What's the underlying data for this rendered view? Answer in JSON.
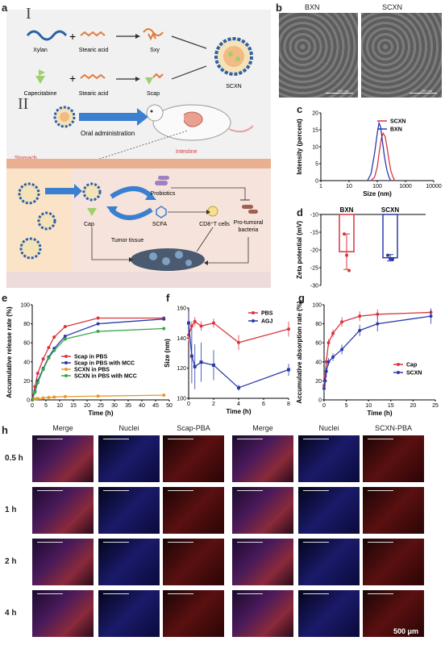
{
  "panels": {
    "a": "a",
    "b": "b",
    "c": "c",
    "d": "d",
    "e": "e",
    "f": "f",
    "g": "g",
    "h": "h"
  },
  "schematic": {
    "section1": "I",
    "section2": "II",
    "xylan": "Xylan",
    "stearic1": "Stearic acid",
    "sxy": "Sxy",
    "capecitabine": "Capecitabine",
    "stearic2": "Stearic acid",
    "scap": "Scap",
    "scxn": "SCXN",
    "oral": "Oral administration",
    "stomach": "Stomach",
    "intestine": "Intestine",
    "probiotics": "Probiotics",
    "cap": "Cap",
    "scfa": "SCFA",
    "cd8": "CD8⁺T cells",
    "protumoral1": "Pro-tumoral",
    "protumoral2": "bacteria",
    "tumor": "Tumor tissue"
  },
  "tem": {
    "left_label": "BXN",
    "right_label": "SCXN",
    "scale_left": "200 nm",
    "scale_right": "200 nm"
  },
  "micro_labels": {
    "cols_left": [
      "Merge",
      "Nuclei",
      "Scap-PBA"
    ],
    "cols_right": [
      "Merge",
      "Nuclei",
      "SCXN-PBA"
    ],
    "rows": [
      "0.5 h",
      "1 h",
      "2 h",
      "4 h"
    ],
    "scalebar": "500 μm"
  },
  "colors": {
    "red": "#d9363e",
    "blue": "#2b3aa8",
    "orange": "#e59a2b",
    "green": "#3aa64a"
  },
  "chart_data": [
    {
      "panel": "c",
      "type": "line",
      "xlabel": "Size (nm)",
      "ylabel": "Intensity (percent)",
      "xscale": "log",
      "xlim": [
        1,
        10000
      ],
      "ylim": [
        0,
        20
      ],
      "xticks": [
        "1",
        "10",
        "100",
        "1000",
        "10000"
      ],
      "yticks": [
        "0",
        "5",
        "10",
        "15",
        "20"
      ],
      "legend_placement": "top-right",
      "series": [
        {
          "name": "SCXN",
          "color": "#d9363e",
          "x": [
            60,
            80,
            100,
            120,
            140,
            160,
            190,
            220,
            260,
            300,
            360,
            420
          ],
          "y": [
            0,
            1,
            4,
            9,
            12.5,
            14,
            13,
            10,
            6,
            3,
            1,
            0
          ]
        },
        {
          "name": "BXN",
          "color": "#2b3aa8",
          "x": [
            45,
            60,
            80,
            100,
            115,
            130,
            150,
            180,
            220,
            260,
            300
          ],
          "y": [
            0,
            2,
            8,
            14,
            17,
            16,
            12,
            7,
            3,
            1,
            0
          ]
        }
      ]
    },
    {
      "panel": "d",
      "type": "bar",
      "ylabel": "Zeta potential (mV)",
      "categories": [
        "BXN",
        "SCXN"
      ],
      "values": [
        -20.5,
        -22.2
      ],
      "errors": [
        5,
        0.9
      ],
      "points": [
        [
          -15.5,
          -21.5,
          -25.8
        ],
        [
          -21.5,
          -22.5,
          -22.6
        ]
      ],
      "ylim": [
        -30,
        -10
      ],
      "yticks": [
        "-10",
        "-15",
        "-20",
        "-25",
        "-30"
      ],
      "colors": [
        "#d9363e",
        "#2b3aa8"
      ]
    },
    {
      "panel": "e",
      "type": "line",
      "xlabel": "Time (h)",
      "ylabel": "Accumulative release rate (%)",
      "xlim": [
        0,
        50
      ],
      "ylim": [
        0,
        100
      ],
      "xticks": [
        "0",
        "5",
        "10",
        "15",
        "20",
        "25",
        "30",
        "35",
        "40",
        "45",
        "50"
      ],
      "yticks": [
        "0",
        "20",
        "40",
        "60",
        "80",
        "100"
      ],
      "legend_placement": "center-right",
      "series": [
        {
          "name": "Scap in PBS",
          "color": "#d9363e",
          "x": [
            0,
            1,
            2,
            4,
            6,
            8,
            12,
            24,
            48
          ],
          "y": [
            0,
            14,
            28,
            43,
            55,
            66,
            77,
            86,
            86
          ]
        },
        {
          "name": "Scap in PBS with MCC",
          "color": "#2b3aa8",
          "x": [
            0,
            1,
            2,
            4,
            6,
            8,
            12,
            24,
            48
          ],
          "y": [
            0,
            9,
            20,
            33,
            45,
            54,
            67,
            80,
            85
          ]
        },
        {
          "name": "SCXN in PBS",
          "color": "#e59a2b",
          "x": [
            0,
            1,
            2,
            4,
            6,
            8,
            12,
            24,
            48
          ],
          "y": [
            0,
            1,
            1.5,
            2,
            2.5,
            3,
            3.5,
            4,
            5
          ]
        },
        {
          "name": "SCXN in PBS with MCC",
          "color": "#3aa64a",
          "x": [
            0,
            1,
            2,
            4,
            6,
            8,
            12,
            24,
            48
          ],
          "y": [
            0,
            8,
            18,
            32,
            44,
            52,
            64,
            72,
            75
          ]
        }
      ]
    },
    {
      "panel": "f",
      "type": "line",
      "xlabel": "Time (h)",
      "ylabel": "Size (nm)",
      "xlim": [
        0,
        8
      ],
      "ylim": [
        100,
        160
      ],
      "xticks": [
        "0",
        "2",
        "4",
        "6",
        "8"
      ],
      "yticks": [
        "100",
        "120",
        "140",
        "160"
      ],
      "legend_placement": "top-right",
      "series": [
        {
          "name": "PBS",
          "color": "#d9363e",
          "x": [
            0,
            0.25,
            0.5,
            1,
            2,
            4,
            8
          ],
          "y": [
            142,
            148,
            151,
            148,
            150,
            137,
            146
          ],
          "err": [
            4,
            3,
            3,
            3,
            3,
            5,
            5
          ]
        },
        {
          "name": "AGJ",
          "color": "#2b3aa8",
          "x": [
            0,
            0.25,
            0.5,
            1,
            2,
            4,
            8
          ],
          "y": [
            150,
            128,
            121,
            124,
            122,
            107,
            119
          ],
          "err": [
            8,
            18,
            15,
            13,
            10,
            2,
            4
          ]
        }
      ]
    },
    {
      "panel": "g",
      "type": "line",
      "xlabel": "Time (h)",
      "ylabel": "Accumulative absorption rate (%)",
      "xlim": [
        0,
        25
      ],
      "ylim": [
        0,
        100
      ],
      "xticks": [
        "0",
        "5",
        "10",
        "15",
        "20",
        "25"
      ],
      "yticks": [
        "0",
        "20",
        "40",
        "60",
        "80",
        "100"
      ],
      "legend_placement": "center-right",
      "series": [
        {
          "name": "Cap",
          "color": "#d9363e",
          "x": [
            0,
            0.25,
            0.5,
            1,
            2,
            4,
            8,
            12,
            24
          ],
          "y": [
            15,
            25,
            40,
            60,
            70,
            82,
            88,
            90,
            92
          ],
          "err": [
            3,
            4,
            4,
            4,
            4,
            5,
            5,
            5,
            4
          ]
        },
        {
          "name": "SCXN",
          "color": "#2b3aa8",
          "x": [
            0,
            0.25,
            0.5,
            1,
            2,
            4,
            8,
            12,
            24
          ],
          "y": [
            12,
            20,
            30,
            40,
            45,
            53,
            73,
            80,
            88
          ],
          "err": [
            3,
            4,
            4,
            4,
            4,
            5,
            6,
            8,
            8
          ]
        }
      ]
    }
  ]
}
